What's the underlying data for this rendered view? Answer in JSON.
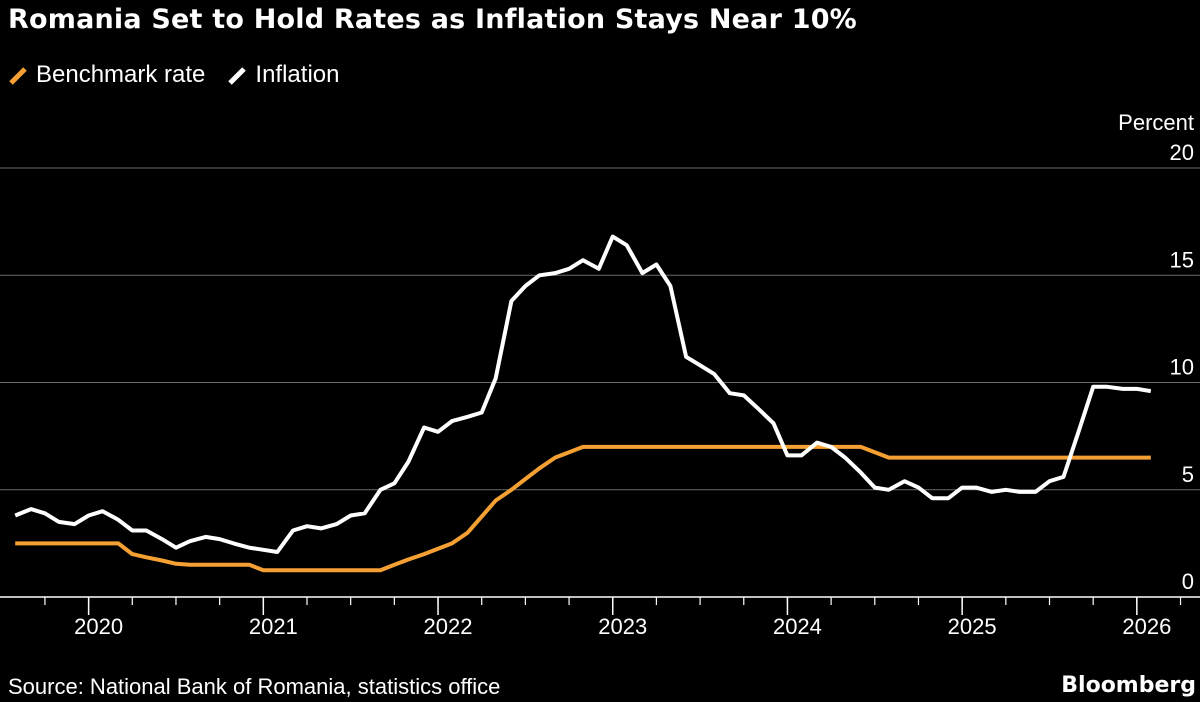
{
  "chart_data": {
    "type": "line",
    "title": "Romania Set to Hold Rates as Inflation Stays Near 10%",
    "ylabel": "Percent",
    "ylim": [
      0,
      20
    ],
    "yticks": [
      0,
      5,
      10,
      15,
      20
    ],
    "xlim": [
      2019.55,
      2026.35
    ],
    "xticks": [
      2020,
      2021,
      2022,
      2023,
      2024,
      2025,
      2026
    ],
    "xtick_labels": [
      "2020",
      "2021",
      "2022",
      "2023",
      "2024",
      "2025",
      "2026"
    ],
    "grid": true,
    "legend_position": "top-left",
    "series": [
      {
        "name": "Benchmark rate",
        "color": "#f5a033",
        "x": [
          2019.58,
          2019.67,
          2019.75,
          2019.83,
          2019.92,
          2020.0,
          2020.08,
          2020.17,
          2020.25,
          2020.33,
          2020.42,
          2020.5,
          2020.58,
          2020.67,
          2020.75,
          2020.83,
          2020.92,
          2021.0,
          2021.08,
          2021.17,
          2021.25,
          2021.33,
          2021.42,
          2021.5,
          2021.58,
          2021.67,
          2021.75,
          2021.83,
          2021.92,
          2022.0,
          2022.08,
          2022.17,
          2022.25,
          2022.33,
          2022.42,
          2022.5,
          2022.58,
          2022.67,
          2022.75,
          2022.83,
          2022.92,
          2023.0,
          2023.08,
          2023.17,
          2023.25,
          2023.33,
          2023.42,
          2023.5,
          2023.58,
          2023.67,
          2023.75,
          2023.83,
          2023.92,
          2024.0,
          2024.08,
          2024.17,
          2024.25,
          2024.33,
          2024.42,
          2024.5,
          2024.58,
          2024.67,
          2024.75,
          2024.83,
          2024.92,
          2025.0,
          2025.08,
          2025.17,
          2025.25,
          2025.33,
          2025.42,
          2025.5,
          2025.58,
          2025.67,
          2025.75,
          2025.83,
          2025.92,
          2026.0,
          2026.08
        ],
        "values": [
          2.5,
          2.5,
          2.5,
          2.5,
          2.5,
          2.5,
          2.5,
          2.5,
          2.0,
          1.85,
          1.7,
          1.55,
          1.5,
          1.5,
          1.5,
          1.5,
          1.5,
          1.25,
          1.25,
          1.25,
          1.25,
          1.25,
          1.25,
          1.25,
          1.25,
          1.25,
          1.5,
          1.75,
          2.0,
          2.25,
          2.5,
          3.0,
          3.75,
          4.5,
          5.0,
          5.5,
          6.0,
          6.5,
          6.75,
          7.0,
          7.0,
          7.0,
          7.0,
          7.0,
          7.0,
          7.0,
          7.0,
          7.0,
          7.0,
          7.0,
          7.0,
          7.0,
          7.0,
          7.0,
          7.0,
          7.0,
          7.0,
          7.0,
          7.0,
          6.75,
          6.5,
          6.5,
          6.5,
          6.5,
          6.5,
          6.5,
          6.5,
          6.5,
          6.5,
          6.5,
          6.5,
          6.5,
          6.5,
          6.5,
          6.5,
          6.5,
          6.5,
          6.5,
          6.5
        ]
      },
      {
        "name": "Inflation",
        "color": "#ffffff",
        "x": [
          2019.58,
          2019.67,
          2019.75,
          2019.83,
          2019.92,
          2020.0,
          2020.08,
          2020.17,
          2020.25,
          2020.33,
          2020.42,
          2020.5,
          2020.58,
          2020.67,
          2020.75,
          2020.83,
          2020.92,
          2021.0,
          2021.08,
          2021.17,
          2021.25,
          2021.33,
          2021.42,
          2021.5,
          2021.58,
          2021.67,
          2021.75,
          2021.83,
          2021.92,
          2022.0,
          2022.08,
          2022.17,
          2022.25,
          2022.33,
          2022.42,
          2022.5,
          2022.58,
          2022.67,
          2022.75,
          2022.83,
          2022.92,
          2023.0,
          2023.08,
          2023.17,
          2023.25,
          2023.33,
          2023.42,
          2023.5,
          2023.58,
          2023.67,
          2023.75,
          2023.83,
          2023.92,
          2024.0,
          2024.08,
          2024.17,
          2024.25,
          2024.33,
          2024.42,
          2024.5,
          2024.58,
          2024.67,
          2024.75,
          2024.83,
          2024.92,
          2025.0,
          2025.08,
          2025.17,
          2025.25,
          2025.33,
          2025.42,
          2025.5,
          2025.58,
          2025.67,
          2025.75,
          2025.83,
          2025.92,
          2026.0,
          2026.08
        ],
        "values": [
          3.8,
          4.1,
          3.9,
          3.5,
          3.4,
          3.8,
          4.0,
          3.6,
          3.1,
          3.1,
          2.7,
          2.3,
          2.6,
          2.8,
          2.7,
          2.5,
          2.3,
          2.2,
          2.1,
          3.1,
          3.3,
          3.2,
          3.4,
          3.8,
          3.9,
          5.0,
          5.3,
          6.3,
          7.9,
          7.7,
          8.2,
          8.4,
          8.6,
          10.2,
          13.8,
          14.5,
          15.0,
          15.1,
          15.3,
          15.7,
          15.3,
          16.8,
          16.4,
          15.1,
          15.5,
          14.5,
          11.2,
          10.8,
          10.4,
          9.5,
          9.4,
          8.8,
          8.1,
          6.6,
          6.6,
          7.2,
          7.0,
          6.5,
          5.8,
          5.1,
          5.0,
          5.4,
          5.1,
          4.6,
          4.6,
          5.1,
          5.1,
          4.9,
          5.0,
          4.9,
          4.9,
          5.4,
          5.6,
          7.8,
          9.8,
          9.8,
          9.7,
          9.7,
          9.6
        ]
      }
    ]
  },
  "source": "Source: National Bank of Romania, statistics office",
  "brand": "Bloomberg"
}
